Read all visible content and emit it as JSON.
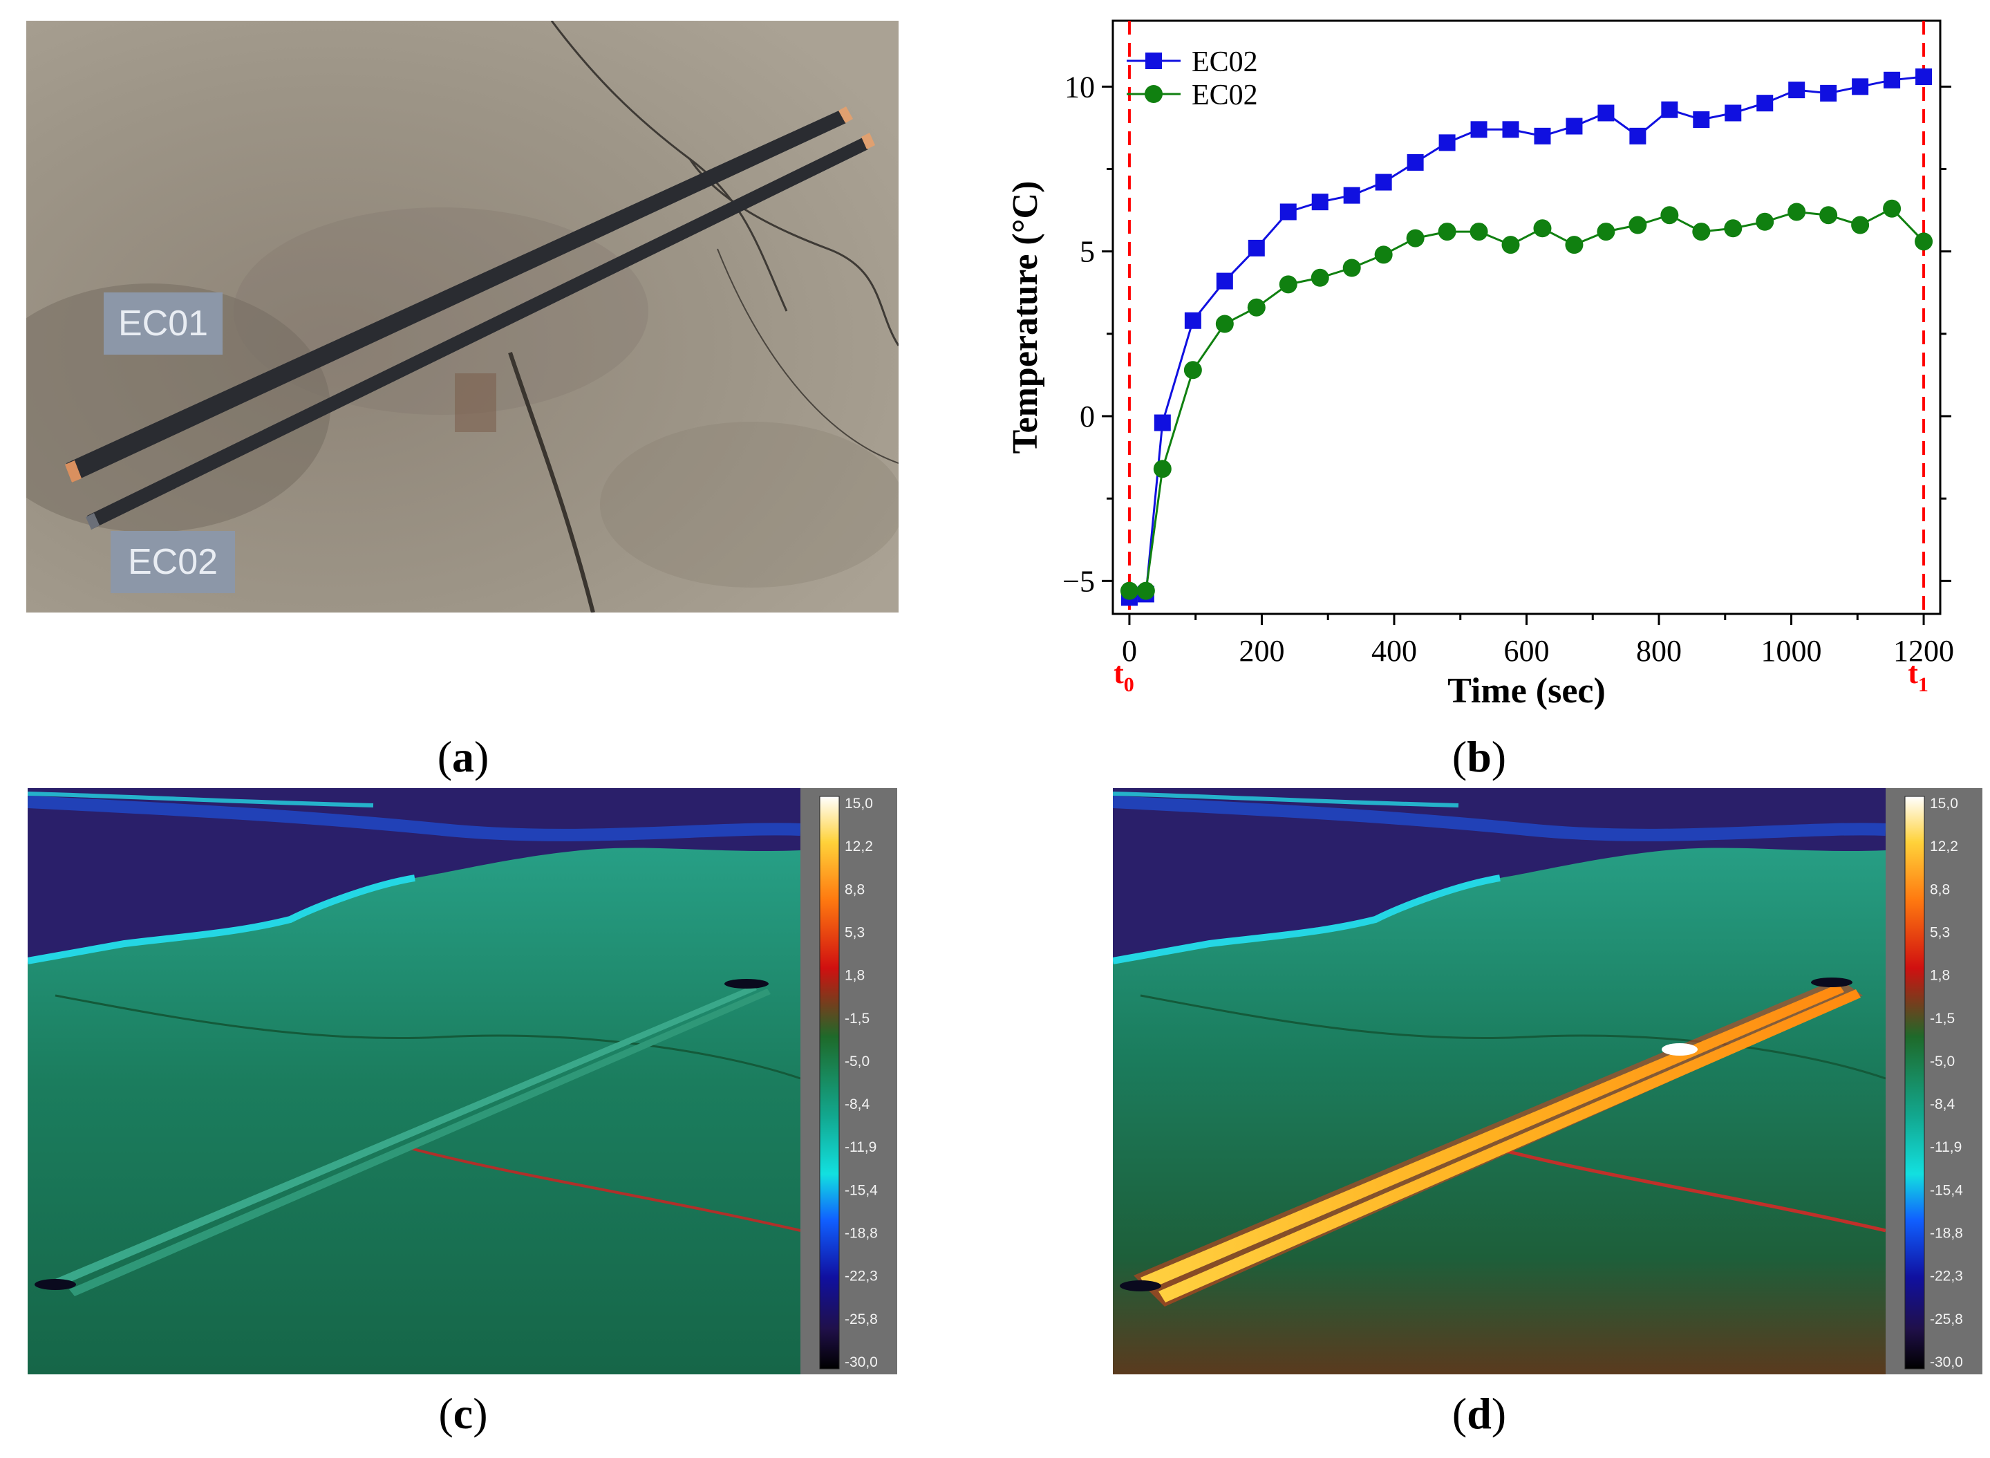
{
  "figure": {
    "panel_a": {
      "caption": "a",
      "strip_labels": [
        "EC01",
        "EC02"
      ]
    },
    "panel_b": {
      "caption": "b"
    },
    "panel_c": {
      "caption": "c",
      "colorbar_ticks": [
        "15,0",
        "12,2",
        "8,8",
        "5,3",
        "1,8",
        "-1,5",
        "-5,0",
        "-8,4",
        "-11,9",
        "-15,4",
        "-18,8",
        "-22,3",
        "-25,8",
        "-30,0"
      ]
    },
    "panel_d": {
      "caption": "d",
      "colorbar_ticks": [
        "15,0",
        "12,2",
        "8,8",
        "5,3",
        "1,8",
        "-1,5",
        "-5,0",
        "-8,4",
        "-11,9",
        "-15,4",
        "-18,8",
        "-22,3",
        "-25,8",
        "-30,0"
      ]
    }
  },
  "chart_data": {
    "type": "line",
    "title": "",
    "xlabel": "Time (sec)",
    "ylabel": "Temperature (°C)",
    "xlim": [
      -25,
      1225
    ],
    "ylim": [
      -6,
      12
    ],
    "xticks": [
      0,
      200,
      400,
      600,
      800,
      1000,
      1200
    ],
    "yticks": [
      -5,
      0,
      5,
      10
    ],
    "grid": false,
    "legend": "top-left",
    "markers": [
      {
        "label": "t",
        "subscript": "0",
        "x": 0,
        "color": "#ff0000"
      },
      {
        "label": "t",
        "subscript": "1",
        "x": 1200,
        "color": "#ff0000"
      }
    ],
    "series": [
      {
        "name": "EC02",
        "color": "#1010e0",
        "marker": "square",
        "x": [
          0,
          25,
          50,
          96,
          144,
          192,
          240,
          288,
          336,
          384,
          432,
          480,
          528,
          576,
          624,
          672,
          720,
          768,
          816,
          864,
          912,
          960,
          1008,
          1056,
          1104,
          1152,
          1200
        ],
        "y": [
          -5.5,
          -5.4,
          -0.2,
          2.9,
          4.1,
          5.1,
          6.2,
          6.5,
          6.7,
          7.1,
          7.7,
          8.3,
          8.7,
          8.7,
          8.5,
          8.8,
          9.2,
          8.5,
          9.3,
          9.0,
          9.2,
          9.5,
          9.9,
          9.8,
          10.0,
          10.2,
          10.3
        ]
      },
      {
        "name": "EC02",
        "color": "#108010",
        "marker": "circle",
        "x": [
          0,
          25,
          50,
          96,
          144,
          192,
          240,
          288,
          336,
          384,
          432,
          480,
          528,
          576,
          624,
          672,
          720,
          768,
          816,
          864,
          912,
          960,
          1008,
          1056,
          1104,
          1152,
          1200
        ],
        "y": [
          -5.3,
          -5.3,
          -1.6,
          1.4,
          2.8,
          3.3,
          4.0,
          4.2,
          4.5,
          4.9,
          5.4,
          5.6,
          5.6,
          5.2,
          5.7,
          5.2,
          5.6,
          5.8,
          6.1,
          5.6,
          5.7,
          5.9,
          6.2,
          6.1,
          5.8,
          6.3,
          5.3
        ]
      }
    ]
  }
}
